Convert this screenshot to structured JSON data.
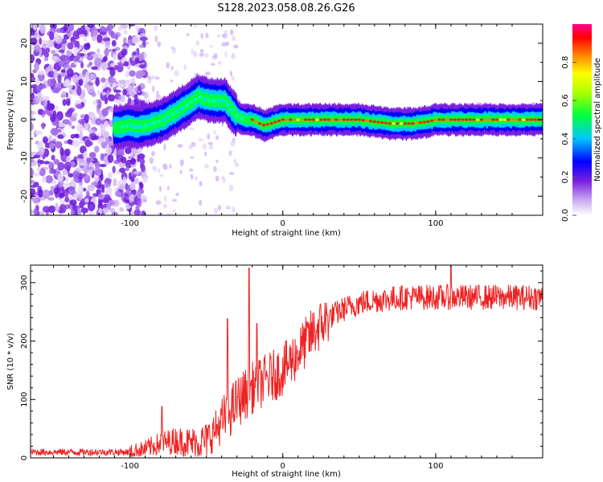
{
  "figure": {
    "title": "S128.2023.058.08.26.G26"
  },
  "chart_data": [
    {
      "type": "heatmap",
      "xlabel": "Height of straight line (km)",
      "ylabel": "Frequency (Hz)",
      "xlim": [
        -165,
        170
      ],
      "ylim": [
        -25,
        25
      ],
      "xticks": [
        -100,
        0,
        100
      ],
      "yticks": [
        -20,
        -10,
        0,
        10,
        20
      ],
      "colorbar": {
        "label": "Normalized spectral amplitude",
        "range": [
          0,
          1
        ],
        "ticks": [
          0.0,
          0.2,
          0.4,
          0.6,
          0.8
        ],
        "colormap": [
          "#ffffff",
          "#8a2be2",
          "#0000ff",
          "#00ffff",
          "#00ff00",
          "#ffff00",
          "#ff8000",
          "#ff0000",
          "#ff00aa"
        ]
      },
      "signal_trace": {
        "x": [
          -108,
          -100,
          -95,
          -85,
          -78,
          -70,
          -62,
          -55,
          -48,
          -42,
          -38,
          -34,
          -30,
          -25,
          -20,
          -15,
          -12,
          -8,
          -4,
          0,
          10,
          30,
          50,
          70,
          85,
          95,
          100,
          110,
          130,
          150,
          170
        ],
        "y": [
          -2,
          -1.5,
          -2,
          -1,
          0,
          2,
          4,
          6,
          5,
          5,
          5,
          3,
          1,
          0,
          0,
          -1,
          -1.5,
          -1,
          -0.5,
          0,
          0,
          0,
          0,
          -1,
          -1,
          -0.5,
          0,
          0,
          0,
          0,
          0
        ]
      },
      "grid": false
    },
    {
      "type": "line",
      "xlabel": "Height of straight line (km)",
      "ylabel": "SNR (10 * v/v)",
      "xlim": [
        -165,
        170
      ],
      "ylim": [
        0,
        330
      ],
      "xticks": [
        -100,
        0,
        100
      ],
      "yticks": [
        0,
        100,
        200,
        300
      ],
      "color": "#ee2222",
      "trend": {
        "x": [
          -165,
          -120,
          -100,
          -90,
          -80,
          -70,
          -60,
          -50,
          -40,
          -30,
          -20,
          -10,
          0,
          10,
          20,
          30,
          40,
          50,
          60,
          80,
          100,
          120,
          140,
          170
        ],
        "y": [
          10,
          10,
          10,
          15,
          25,
          30,
          25,
          30,
          60,
          95,
          120,
          135,
          150,
          180,
          215,
          240,
          255,
          265,
          270,
          275,
          275,
          275,
          275,
          275
        ]
      },
      "spikes": [
        {
          "x": -79,
          "y": 88
        },
        {
          "x": -36,
          "y": 238
        },
        {
          "x": -22,
          "y": 325
        },
        {
          "x": -17,
          "y": 230
        },
        {
          "x": 110,
          "y": 330
        }
      ],
      "grid": false
    }
  ]
}
